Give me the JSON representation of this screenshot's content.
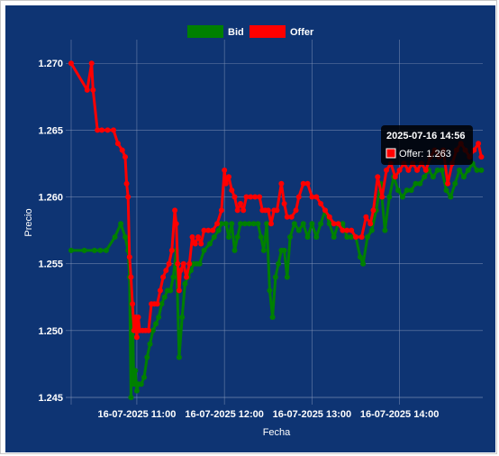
{
  "chart_data": {
    "type": "line",
    "title": "",
    "xlabel": "Fecha",
    "ylabel": "Precio",
    "ylim": [
      1.245,
      1.2715
    ],
    "xlim": [
      "2025-07-16 10:15",
      "2025-07-16 14:57"
    ],
    "yticks": [
      "1.245",
      "1.250",
      "1.255",
      "1.260",
      "1.265",
      "1.270"
    ],
    "xticks": [
      {
        "t": "2025-07-16 11:00",
        "label": "16-07-2025  11:00"
      },
      {
        "t": "2025-07-16 12:00",
        "label": "16-07-2025  12:00"
      },
      {
        "t": "2025-07-16 13:00",
        "label": "16-07-2025  13:00"
      },
      {
        "t": "2025-07-16 14:00",
        "label": "16-07-2025  14:00"
      }
    ],
    "grid": true,
    "legend_position": "top",
    "series": [
      {
        "name": "Bid",
        "color": "#008000",
        "points": [
          [
            "2025-07-16 10:15",
            1.256
          ],
          [
            "2025-07-16 10:24",
            1.256
          ],
          [
            "2025-07-16 10:31",
            1.256
          ],
          [
            "2025-07-16 10:35",
            1.256
          ],
          [
            "2025-07-16 10:39",
            1.256
          ],
          [
            "2025-07-16 10:45",
            1.257
          ],
          [
            "2025-07-16 10:49",
            1.258
          ],
          [
            "2025-07-16 10:52",
            1.257
          ],
          [
            "2025-07-16 10:54",
            1.256
          ],
          [
            "2025-07-16 10:55",
            1.254
          ],
          [
            "2025-07-16 10:56",
            1.245
          ],
          [
            "2025-07-16 10:57",
            1.251
          ],
          [
            "2025-07-16 10:58",
            1.246
          ],
          [
            "2025-07-16 10:59",
            1.247
          ],
          [
            "2025-07-16 11:00",
            1.2455
          ],
          [
            "2025-07-16 11:01",
            1.246
          ],
          [
            "2025-07-16 11:03",
            1.246
          ],
          [
            "2025-07-16 11:05",
            1.2465
          ],
          [
            "2025-07-16 11:07",
            1.248
          ],
          [
            "2025-07-16 11:09",
            1.249
          ],
          [
            "2025-07-16 11:11",
            1.25
          ],
          [
            "2025-07-16 11:13",
            1.2505
          ],
          [
            "2025-07-16 11:15",
            1.251
          ],
          [
            "2025-07-16 11:17",
            1.252
          ],
          [
            "2025-07-16 11:19",
            1.2525
          ],
          [
            "2025-07-16 11:21",
            1.253
          ],
          [
            "2025-07-16 11:23",
            1.253
          ],
          [
            "2025-07-16 11:25",
            1.254
          ],
          [
            "2025-07-16 11:27",
            1.256
          ],
          [
            "2025-07-16 11:29",
            1.248
          ],
          [
            "2025-07-16 11:31",
            1.251
          ],
          [
            "2025-07-16 11:33",
            1.2535
          ],
          [
            "2025-07-16 11:35",
            1.254
          ],
          [
            "2025-07-16 11:37",
            1.2545
          ],
          [
            "2025-07-16 11:39",
            1.255
          ],
          [
            "2025-07-16 11:41",
            1.255
          ],
          [
            "2025-07-16 11:43",
            1.255
          ],
          [
            "2025-07-16 11:46",
            1.256
          ],
          [
            "2025-07-16 11:50",
            1.2565
          ],
          [
            "2025-07-16 11:53",
            1.257
          ],
          [
            "2025-07-16 11:56",
            1.2575
          ],
          [
            "2025-07-16 11:58",
            1.258
          ],
          [
            "2025-07-16 12:01",
            1.258
          ],
          [
            "2025-07-16 12:03",
            1.257
          ],
          [
            "2025-07-16 12:05",
            1.258
          ],
          [
            "2025-07-16 12:07",
            1.256
          ],
          [
            "2025-07-16 12:09",
            1.257
          ],
          [
            "2025-07-16 12:11",
            1.258
          ],
          [
            "2025-07-16 12:14",
            1.258
          ],
          [
            "2025-07-16 12:17",
            1.258
          ],
          [
            "2025-07-16 12:20",
            1.258
          ],
          [
            "2025-07-16 12:23",
            1.258
          ],
          [
            "2025-07-16 12:25",
            1.257
          ],
          [
            "2025-07-16 12:27",
            1.256
          ],
          [
            "2025-07-16 12:29",
            1.258
          ],
          [
            "2025-07-16 12:31",
            1.253
          ],
          [
            "2025-07-16 12:33",
            1.251
          ],
          [
            "2025-07-16 12:35",
            1.254
          ],
          [
            "2025-07-16 12:37",
            1.255
          ],
          [
            "2025-07-16 12:39",
            1.256
          ],
          [
            "2025-07-16 12:41",
            1.256
          ],
          [
            "2025-07-16 12:43",
            1.254
          ],
          [
            "2025-07-16 12:45",
            1.257
          ],
          [
            "2025-07-16 12:48",
            1.258
          ],
          [
            "2025-07-16 12:51",
            1.2575
          ],
          [
            "2025-07-16 12:54",
            1.258
          ],
          [
            "2025-07-16 12:57",
            1.257
          ],
          [
            "2025-07-16 13:00",
            1.258
          ],
          [
            "2025-07-16 13:03",
            1.257
          ],
          [
            "2025-07-16 13:06",
            1.258
          ],
          [
            "2025-07-16 13:09",
            1.259
          ],
          [
            "2025-07-16 13:12",
            1.258
          ],
          [
            "2025-07-16 13:15",
            1.257
          ],
          [
            "2025-07-16 13:18",
            1.258
          ],
          [
            "2025-07-16 13:21",
            1.258
          ],
          [
            "2025-07-16 13:24",
            1.257
          ],
          [
            "2025-07-16 13:27",
            1.257
          ],
          [
            "2025-07-16 13:30",
            1.257
          ],
          [
            "2025-07-16 13:33",
            1.2555
          ],
          [
            "2025-07-16 13:35",
            1.255
          ],
          [
            "2025-07-16 13:38",
            1.257
          ],
          [
            "2025-07-16 13:41",
            1.2575
          ],
          [
            "2025-07-16 13:44",
            1.259
          ],
          [
            "2025-07-16 13:47",
            1.261
          ],
          [
            "2025-07-16 13:50",
            1.2575
          ],
          [
            "2025-07-16 13:53",
            1.26
          ],
          [
            "2025-07-16 13:56",
            1.2615
          ],
          [
            "2025-07-16 13:59",
            1.2605
          ],
          [
            "2025-07-16 14:02",
            1.26
          ],
          [
            "2025-07-16 14:05",
            1.2605
          ],
          [
            "2025-07-16 14:08",
            1.2605
          ],
          [
            "2025-07-16 14:11",
            1.261
          ],
          [
            "2025-07-16 14:14",
            1.261
          ],
          [
            "2025-07-16 14:17",
            1.2615
          ],
          [
            "2025-07-16 14:20",
            1.262
          ],
          [
            "2025-07-16 14:23",
            1.2615
          ],
          [
            "2025-07-16 14:26",
            1.262
          ],
          [
            "2025-07-16 14:29",
            1.262
          ],
          [
            "2025-07-16 14:32",
            1.2605
          ],
          [
            "2025-07-16 14:35",
            1.26
          ],
          [
            "2025-07-16 14:38",
            1.261
          ],
          [
            "2025-07-16 14:41",
            1.262
          ],
          [
            "2025-07-16 14:44",
            1.2615
          ],
          [
            "2025-07-16 14:47",
            1.262
          ],
          [
            "2025-07-16 14:50",
            1.2625
          ],
          [
            "2025-07-16 14:53",
            1.262
          ],
          [
            "2025-07-16 14:56",
            1.262
          ]
        ]
      },
      {
        "name": "Offer",
        "color": "#ff0000",
        "points": [
          [
            "2025-07-16 10:15",
            1.27
          ],
          [
            "2025-07-16 10:26",
            1.268
          ],
          [
            "2025-07-16 10:29",
            1.27
          ],
          [
            "2025-07-16 10:30",
            1.268
          ],
          [
            "2025-07-16 10:33",
            1.265
          ],
          [
            "2025-07-16 10:36",
            1.265
          ],
          [
            "2025-07-16 10:40",
            1.265
          ],
          [
            "2025-07-16 10:44",
            1.265
          ],
          [
            "2025-07-16 10:47",
            1.264
          ],
          [
            "2025-07-16 10:50",
            1.2635
          ],
          [
            "2025-07-16 10:52",
            1.263
          ],
          [
            "2025-07-16 10:53",
            1.261
          ],
          [
            "2025-07-16 10:54",
            1.26
          ],
          [
            "2025-07-16 10:55",
            1.2555
          ],
          [
            "2025-07-16 10:56",
            1.254
          ],
          [
            "2025-07-16 10:57",
            1.252
          ],
          [
            "2025-07-16 10:58",
            1.25
          ],
          [
            "2025-07-16 10:59",
            1.251
          ],
          [
            "2025-07-16 11:00",
            1.2495
          ],
          [
            "2025-07-16 11:01",
            1.251
          ],
          [
            "2025-07-16 11:02",
            1.25
          ],
          [
            "2025-07-16 11:04",
            1.25
          ],
          [
            "2025-07-16 11:06",
            1.25
          ],
          [
            "2025-07-16 11:08",
            1.25
          ],
          [
            "2025-07-16 11:10",
            1.252
          ],
          [
            "2025-07-16 11:12",
            1.252
          ],
          [
            "2025-07-16 11:14",
            1.252
          ],
          [
            "2025-07-16 11:16",
            1.253
          ],
          [
            "2025-07-16 11:18",
            1.254
          ],
          [
            "2025-07-16 11:20",
            1.2545
          ],
          [
            "2025-07-16 11:22",
            1.255
          ],
          [
            "2025-07-16 11:24",
            1.256
          ],
          [
            "2025-07-16 11:26",
            1.259
          ],
          [
            "2025-07-16 11:27",
            1.258
          ],
          [
            "2025-07-16 11:28",
            1.255
          ],
          [
            "2025-07-16 11:29",
            1.253
          ],
          [
            "2025-07-16 11:30",
            1.2545
          ],
          [
            "2025-07-16 11:32",
            1.255
          ],
          [
            "2025-07-16 11:34",
            1.254
          ],
          [
            "2025-07-16 11:36",
            1.255
          ],
          [
            "2025-07-16 11:38",
            1.257
          ],
          [
            "2025-07-16 11:40",
            1.2565
          ],
          [
            "2025-07-16 11:42",
            1.257
          ],
          [
            "2025-07-16 11:44",
            1.2565
          ],
          [
            "2025-07-16 11:46",
            1.2575
          ],
          [
            "2025-07-16 11:49",
            1.2575
          ],
          [
            "2025-07-16 11:52",
            1.2575
          ],
          [
            "2025-07-16 11:55",
            1.258
          ],
          [
            "2025-07-16 11:58",
            1.259
          ],
          [
            "2025-07-16 12:00",
            1.262
          ],
          [
            "2025-07-16 12:01",
            1.261
          ],
          [
            "2025-07-16 12:03",
            1.2615
          ],
          [
            "2025-07-16 12:05",
            1.2605
          ],
          [
            "2025-07-16 12:07",
            1.26
          ],
          [
            "2025-07-16 12:09",
            1.259
          ],
          [
            "2025-07-16 12:11",
            1.2595
          ],
          [
            "2025-07-16 12:13",
            1.259
          ],
          [
            "2025-07-16 12:15",
            1.26
          ],
          [
            "2025-07-16 12:18",
            1.26
          ],
          [
            "2025-07-16 12:21",
            1.26
          ],
          [
            "2025-07-16 12:24",
            1.26
          ],
          [
            "2025-07-16 12:26",
            1.259
          ],
          [
            "2025-07-16 12:28",
            1.259
          ],
          [
            "2025-07-16 12:30",
            1.259
          ],
          [
            "2025-07-16 12:32",
            1.258
          ],
          [
            "2025-07-16 12:34",
            1.259
          ],
          [
            "2025-07-16 12:36",
            1.259
          ],
          [
            "2025-07-16 12:39",
            1.261
          ],
          [
            "2025-07-16 12:41",
            1.2595
          ],
          [
            "2025-07-16 12:43",
            1.2585
          ],
          [
            "2025-07-16 12:46",
            1.2585
          ],
          [
            "2025-07-16 12:49",
            1.259
          ],
          [
            "2025-07-16 12:51",
            1.26
          ],
          [
            "2025-07-16 12:54",
            1.261
          ],
          [
            "2025-07-16 12:57",
            1.261
          ],
          [
            "2025-07-16 13:00",
            1.26
          ],
          [
            "2025-07-16 13:03",
            1.26
          ],
          [
            "2025-07-16 13:06",
            1.2595
          ],
          [
            "2025-07-16 13:09",
            1.259
          ],
          [
            "2025-07-16 13:12",
            1.2585
          ],
          [
            "2025-07-16 13:15",
            1.258
          ],
          [
            "2025-07-16 13:18",
            1.258
          ],
          [
            "2025-07-16 13:21",
            1.2575
          ],
          [
            "2025-07-16 13:24",
            1.2575
          ],
          [
            "2025-07-16 13:27",
            1.2575
          ],
          [
            "2025-07-16 13:30",
            1.257
          ],
          [
            "2025-07-16 13:34",
            1.257
          ],
          [
            "2025-07-16 13:37",
            1.2585
          ],
          [
            "2025-07-16 13:40",
            1.258
          ],
          [
            "2025-07-16 13:42",
            1.259
          ],
          [
            "2025-07-16 13:45",
            1.2615
          ],
          [
            "2025-07-16 13:48",
            1.26
          ],
          [
            "2025-07-16 13:51",
            1.262
          ],
          [
            "2025-07-16 13:54",
            1.2625
          ],
          [
            "2025-07-16 13:57",
            1.2615
          ],
          [
            "2025-07-16 14:00",
            1.262
          ],
          [
            "2025-07-16 14:03",
            1.2625
          ],
          [
            "2025-07-16 14:06",
            1.262
          ],
          [
            "2025-07-16 14:09",
            1.2625
          ],
          [
            "2025-07-16 14:12",
            1.262
          ],
          [
            "2025-07-16 14:15",
            1.2625
          ],
          [
            "2025-07-16 14:18",
            1.262
          ],
          [
            "2025-07-16 14:21",
            1.263
          ],
          [
            "2025-07-16 14:24",
            1.2635
          ],
          [
            "2025-07-16 14:27",
            1.263
          ],
          [
            "2025-07-16 14:30",
            1.2635
          ],
          [
            "2025-07-16 14:33",
            1.261
          ],
          [
            "2025-07-16 14:36",
            1.2625
          ],
          [
            "2025-07-16 14:39",
            1.2635
          ],
          [
            "2025-07-16 14:42",
            1.264
          ],
          [
            "2025-07-16 14:45",
            1.2635
          ],
          [
            "2025-07-16 14:48",
            1.263
          ],
          [
            "2025-07-16 14:51",
            1.2635
          ],
          [
            "2025-07-16 14:54",
            1.264
          ],
          [
            "2025-07-16 14:56",
            1.263
          ]
        ]
      }
    ],
    "tooltip": {
      "title": "2025-07-16 14:56",
      "series": "Offer",
      "label": "Offer: 1.263",
      "t": "2025-07-16 14:56",
      "y": 1.263
    }
  }
}
